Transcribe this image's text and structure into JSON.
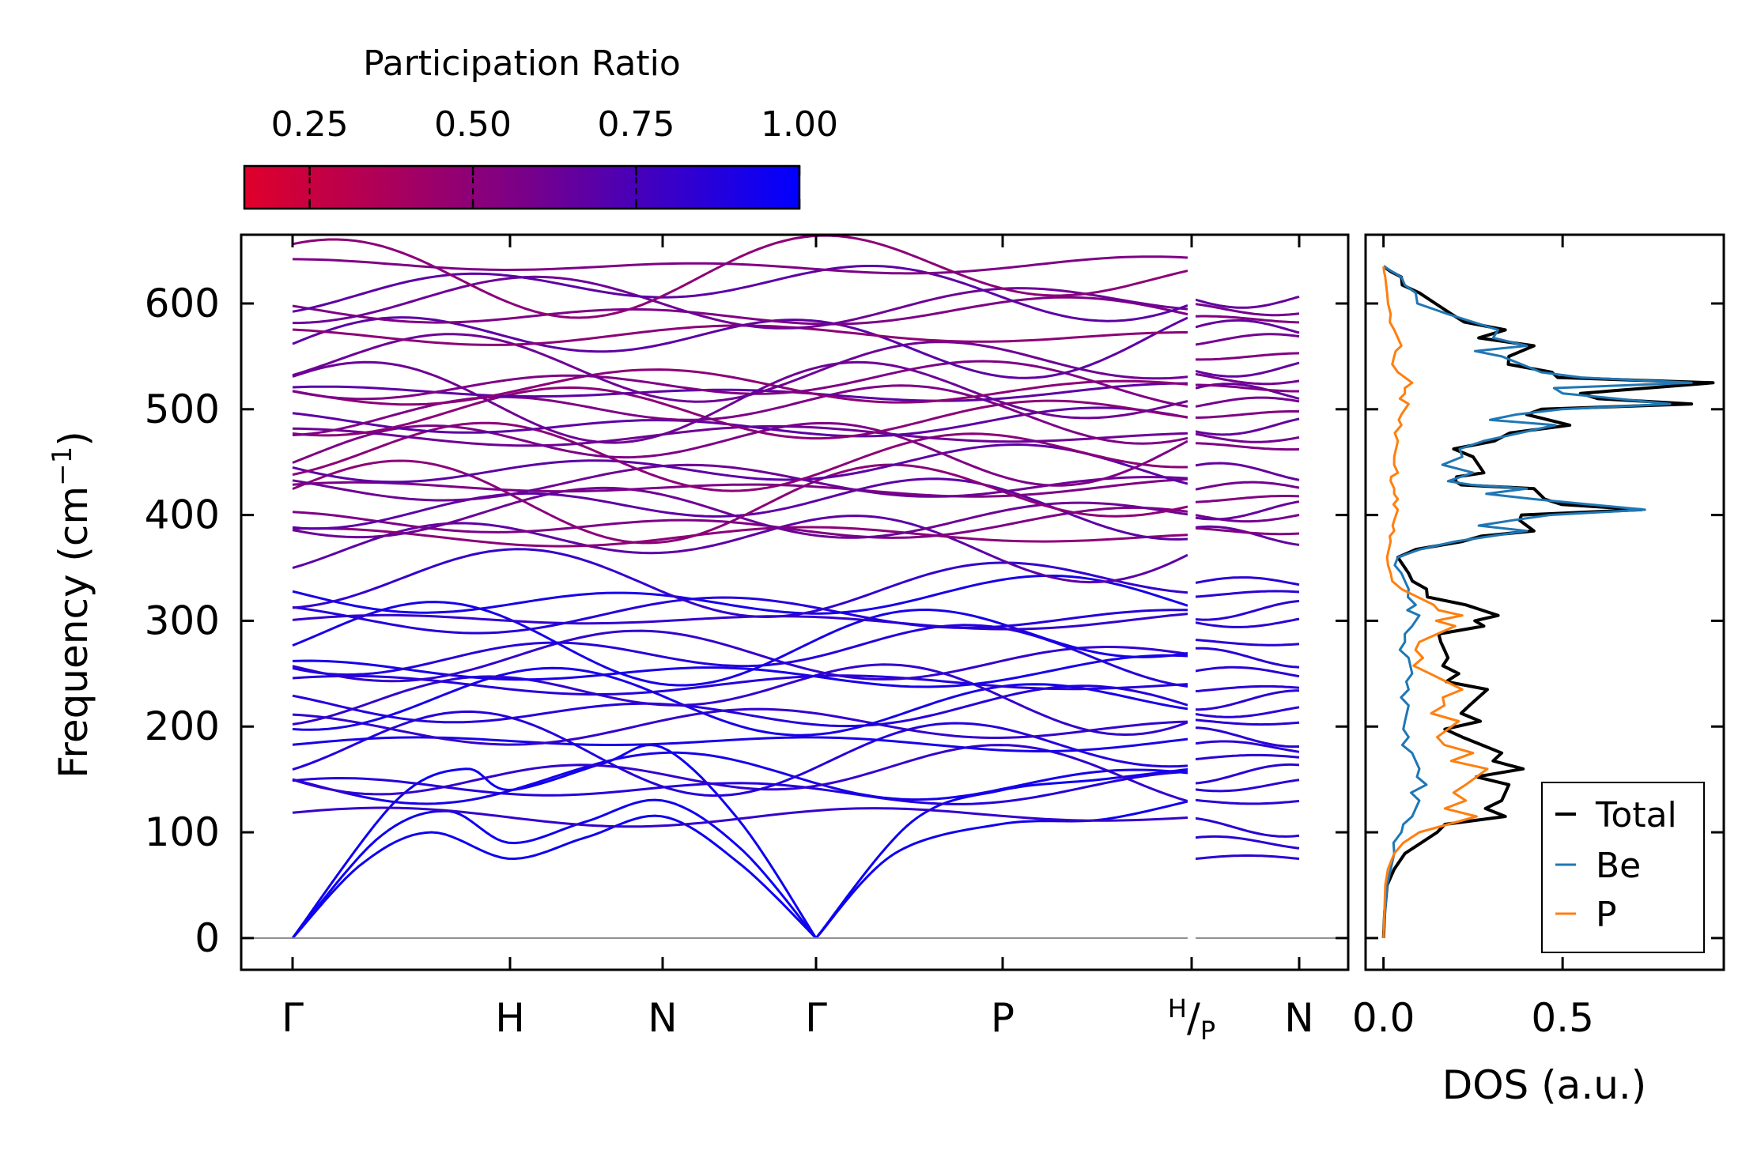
{
  "colorbar": {
    "title": "Participation Ratio",
    "range": [
      0.15,
      1.0
    ],
    "ticks": [
      0.25,
      0.5,
      0.75,
      1.0
    ],
    "tick_labels": [
      "0.25",
      "0.50",
      "0.75",
      "1.00"
    ],
    "color_low": "#e0002a",
    "color_mid": "#7a0088",
    "color_high": "#0000ff"
  },
  "chart_data": [
    {
      "type": "line",
      "name": "phonon-band-structure",
      "ylabel": "Frequency (cm",
      "ylabel_sup": "−1",
      "ylabel_close": ")",
      "ylim": [
        -30,
        665
      ],
      "yticks": [
        0,
        100,
        200,
        300,
        400,
        500,
        600
      ],
      "ytick_labels": [
        "0",
        "100",
        "200",
        "300",
        "400",
        "500",
        "600"
      ],
      "xlim": [
        0,
        5.55
      ],
      "kpoints": [
        {
          "label": "Γ",
          "x": 0.3
        },
        {
          "label": "H",
          "x": 1.56
        },
        {
          "label": "N",
          "x": 2.45
        },
        {
          "label": "Γ",
          "x": 3.34
        },
        {
          "label": "P",
          "x": 4.43
        },
        {
          "label": "H/P",
          "label_top": "H",
          "label_bottom": "P",
          "x": 5.52
        },
        {
          "label": "N",
          "x": 6.12
        }
      ],
      "zero_line": 0,
      "acoustic": [
        {
          "x": [
            0.3,
            0.7,
            1.1,
            1.56,
            2.0,
            2.45,
            2.9,
            3.34
          ],
          "y": [
            0,
            70,
            100,
            75,
            95,
            115,
            70,
            0
          ]
        },
        {
          "x": [
            0.3,
            0.8,
            1.2,
            1.56,
            2.0,
            2.45,
            2.9,
            3.34
          ],
          "y": [
            0,
            95,
            120,
            90,
            110,
            130,
            85,
            0
          ]
        },
        {
          "x": [
            0.3,
            0.9,
            1.3,
            1.56,
            2.1,
            2.45,
            2.9,
            3.34
          ],
          "y": [
            0,
            130,
            160,
            140,
            165,
            180,
            110,
            0
          ]
        },
        {
          "x": [
            3.34,
            3.8,
            4.43,
            5.0,
            5.52
          ],
          "y": [
            0,
            80,
            108,
            112,
            130
          ]
        },
        {
          "x": [
            3.34,
            3.9,
            4.43,
            5.0,
            5.52
          ],
          "y": [
            0,
            110,
            140,
            150,
            160
          ]
        }
      ],
      "optical_levels": [
        115,
        140,
        150,
        155,
        175,
        185,
        200,
        215,
        222,
        232,
        240,
        250,
        265,
        270,
        280,
        300,
        305,
        320,
        335,
        375,
        380,
        390,
        400,
        410,
        415,
        425,
        430,
        445,
        455,
        465,
        475,
        485,
        495,
        500,
        510,
        515,
        520,
        525,
        540,
        565,
        570,
        590,
        600,
        615,
        628,
        635
      ],
      "segment2_levels": [
        75,
        90,
        105,
        130,
        145,
        155,
        170,
        180,
        190,
        205,
        215,
        225,
        235,
        250,
        265,
        280,
        300,
        310,
        325,
        335,
        380,
        385,
        400,
        405,
        415,
        425,
        440,
        465,
        475,
        485,
        495,
        505,
        515,
        520,
        530,
        540,
        550,
        565,
        575,
        585,
        595,
        605
      ]
    },
    {
      "type": "line",
      "name": "density-of-states",
      "xlabel": "DOS (a.u.)",
      "xticks": [
        0.0,
        0.5
      ],
      "xtick_labels": [
        "0.0",
        "0.5"
      ],
      "xlim": [
        -0.05,
        0.95
      ],
      "ylim": [
        -30,
        665
      ],
      "legend_position": "lower-right",
      "series": [
        {
          "name": "Total",
          "color": "#000000",
          "freq": [
            0,
            50,
            80,
            100,
            115,
            130,
            145,
            160,
            175,
            190,
            205,
            220,
            235,
            250,
            265,
            280,
            295,
            305,
            315,
            330,
            345,
            360,
            375,
            385,
            395,
            405,
            415,
            425,
            432,
            440,
            455,
            470,
            485,
            495,
            505,
            515,
            525,
            535,
            550,
            560,
            575,
            590,
            610,
            625,
            635
          ],
          "dos": [
            0,
            0.01,
            0.06,
            0.15,
            0.34,
            0.33,
            0.35,
            0.39,
            0.33,
            0.22,
            0.27,
            0.24,
            0.29,
            0.21,
            0.18,
            0.16,
            0.28,
            0.32,
            0.23,
            0.12,
            0.07,
            0.04,
            0.22,
            0.42,
            0.38,
            0.72,
            0.45,
            0.42,
            0.2,
            0.28,
            0.25,
            0.31,
            0.52,
            0.4,
            0.86,
            0.55,
            0.92,
            0.47,
            0.35,
            0.42,
            0.34,
            0.19,
            0.1,
            0.05,
            0.0
          ]
        },
        {
          "name": "Be",
          "color": "#1f77b4",
          "freq": [
            0,
            50,
            80,
            100,
            115,
            130,
            145,
            160,
            175,
            190,
            205,
            220,
            235,
            250,
            265,
            280,
            295,
            305,
            315,
            330,
            345,
            360,
            375,
            385,
            395,
            405,
            415,
            425,
            432,
            440,
            455,
            470,
            485,
            495,
            505,
            515,
            525,
            535,
            550,
            560,
            575,
            590,
            610,
            625,
            635
          ],
          "dos": [
            0,
            0.01,
            0.03,
            0.05,
            0.08,
            0.1,
            0.12,
            0.1,
            0.08,
            0.07,
            0.06,
            0.07,
            0.07,
            0.08,
            0.07,
            0.06,
            0.08,
            0.1,
            0.09,
            0.07,
            0.05,
            0.04,
            0.2,
            0.4,
            0.36,
            0.73,
            0.42,
            0.4,
            0.18,
            0.25,
            0.22,
            0.28,
            0.48,
            0.37,
            0.8,
            0.5,
            0.86,
            0.44,
            0.33,
            0.4,
            0.32,
            0.18,
            0.09,
            0.05,
            0.0
          ]
        },
        {
          "name": "P",
          "color": "#ff7f0e",
          "freq": [
            0,
            50,
            80,
            100,
            115,
            130,
            145,
            160,
            175,
            190,
            205,
            220,
            235,
            250,
            265,
            280,
            295,
            305,
            315,
            330,
            345,
            360,
            375,
            385,
            395,
            405,
            415,
            425,
            432,
            440,
            455,
            470,
            485,
            495,
            505,
            515,
            525,
            535,
            550,
            560,
            575,
            590,
            610,
            625,
            635
          ],
          "dos": [
            0,
            0.005,
            0.03,
            0.1,
            0.26,
            0.23,
            0.23,
            0.29,
            0.25,
            0.15,
            0.21,
            0.17,
            0.22,
            0.13,
            0.11,
            0.1,
            0.2,
            0.22,
            0.14,
            0.05,
            0.02,
            0.01,
            0.02,
            0.03,
            0.03,
            0.04,
            0.04,
            0.03,
            0.02,
            0.04,
            0.03,
            0.04,
            0.05,
            0.05,
            0.07,
            0.06,
            0.08,
            0.04,
            0.03,
            0.05,
            0.03,
            0.02,
            0.01,
            0.005,
            0.0
          ]
        }
      ]
    }
  ]
}
